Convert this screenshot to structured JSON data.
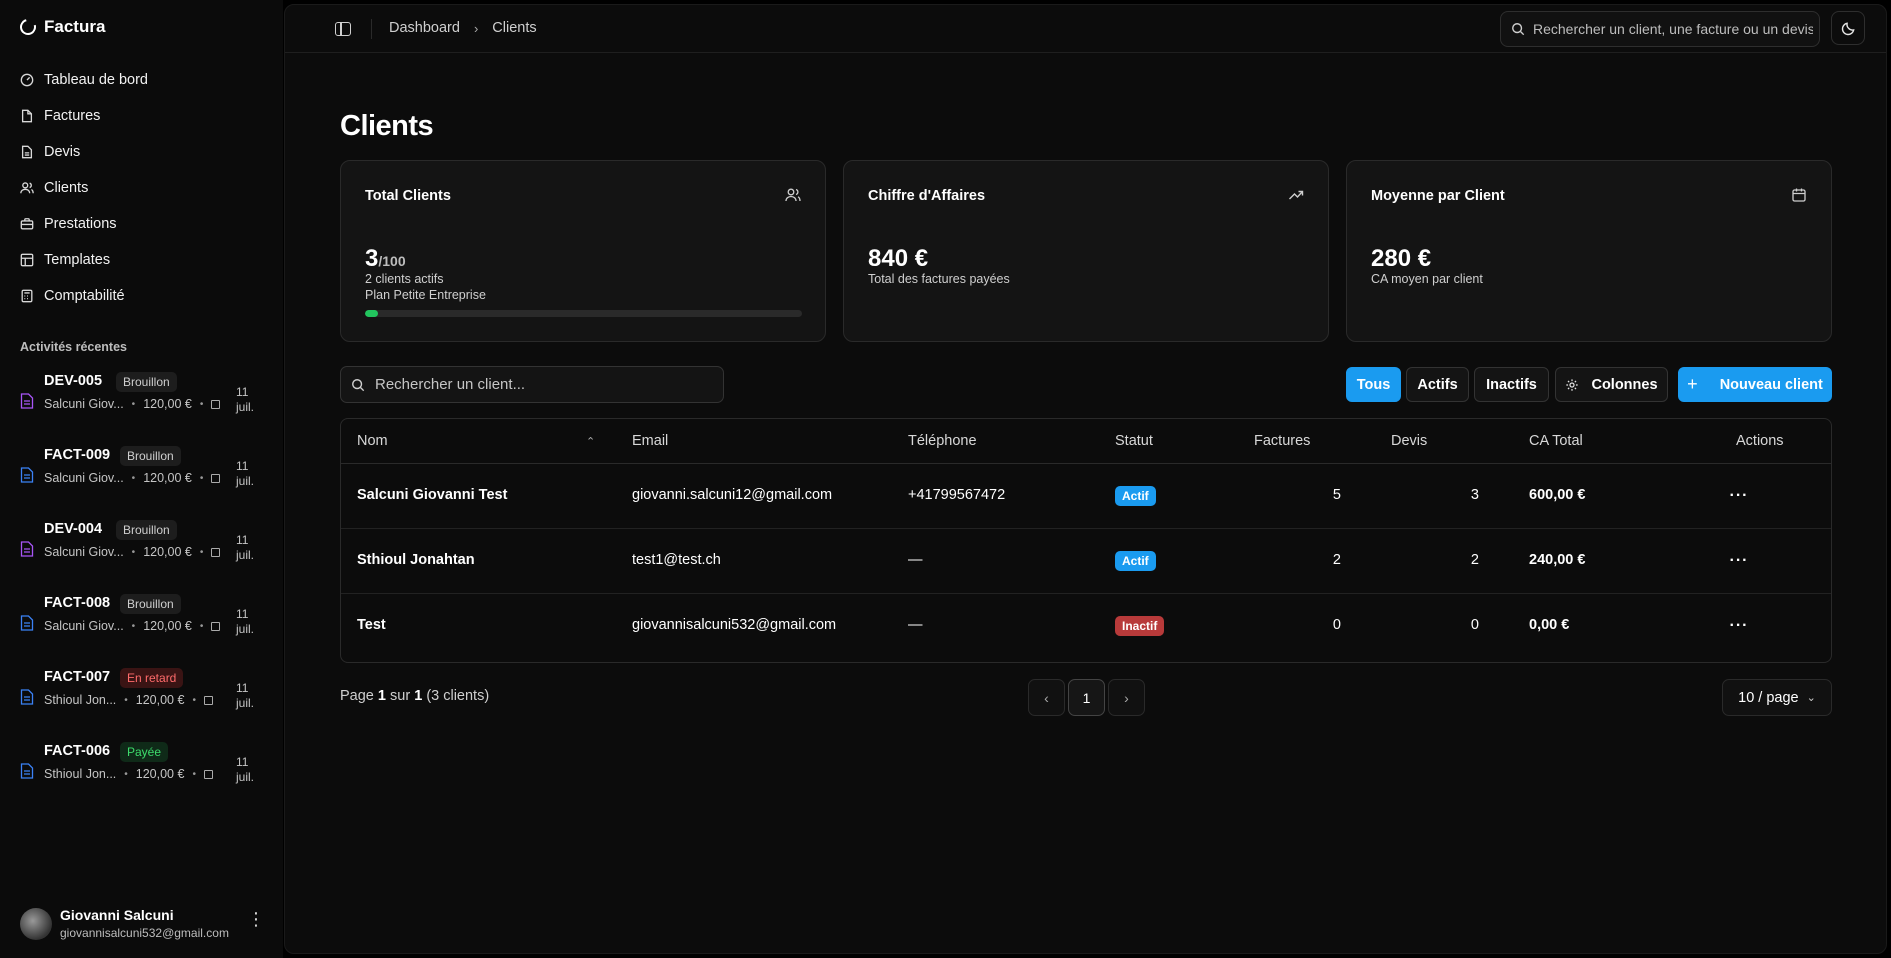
{
  "app": {
    "name": "Factura"
  },
  "sidebar": {
    "nav": [
      {
        "label": "Tableau de bord",
        "icon": "gauge-icon"
      },
      {
        "label": "Factures",
        "icon": "file-icon"
      },
      {
        "label": "Devis",
        "icon": "file-text-icon"
      },
      {
        "label": "Clients",
        "icon": "users-icon"
      },
      {
        "label": "Prestations",
        "icon": "briefcase-icon"
      },
      {
        "label": "Templates",
        "icon": "layout-icon"
      },
      {
        "label": "Comptabilité",
        "icon": "calculator-icon"
      }
    ],
    "activities_label": "Activités récentes",
    "activities": [
      {
        "ref": "DEV-005",
        "badge": "Brouillon",
        "badge_type": "draft",
        "client": "Salcuni Giov...",
        "amount": "120,00 €",
        "date": "11 juil.",
        "icon": "quote-icon",
        "icon_color": "#a855f7"
      },
      {
        "ref": "FACT-009",
        "badge": "Brouillon",
        "badge_type": "draft",
        "client": "Salcuni Giov...",
        "amount": "120,00 €",
        "date": "11 juil.",
        "icon": "invoice-icon",
        "icon_color": "#3b82f6"
      },
      {
        "ref": "DEV-004",
        "badge": "Brouillon",
        "badge_type": "draft",
        "client": "Salcuni Giov...",
        "amount": "120,00 €",
        "date": "11 juil.",
        "icon": "quote-icon",
        "icon_color": "#a855f7"
      },
      {
        "ref": "FACT-008",
        "badge": "Brouillon",
        "badge_type": "draft",
        "client": "Salcuni Giov...",
        "amount": "120,00 €",
        "date": "11 juil.",
        "icon": "invoice-icon",
        "icon_color": "#3b82f6"
      },
      {
        "ref": "FACT-007",
        "badge": "En retard",
        "badge_type": "late",
        "client": "Sthioul Jon...",
        "amount": "120,00 €",
        "date": "11 juil.",
        "icon": "invoice-icon",
        "icon_color": "#3b82f6"
      },
      {
        "ref": "FACT-006",
        "badge": "Payée",
        "badge_type": "paid",
        "client": "Sthioul Jon...",
        "amount": "120,00 €",
        "date": "11 juil.",
        "icon": "invoice-icon",
        "icon_color": "#3b82f6"
      }
    ],
    "user": {
      "name": "Giovanni Salcuni",
      "email": "giovannisalcuni532@gmail.com"
    }
  },
  "header": {
    "breadcrumb": [
      "Dashboard",
      "Clients"
    ],
    "search_placeholder": "Rechercher un client, une facture ou un devis..."
  },
  "page": {
    "title": "Clients"
  },
  "stats": [
    {
      "title": "Total Clients",
      "value": "3",
      "denominator": "/100",
      "line1": "2 clients actifs",
      "line2": "Plan Petite Entreprise",
      "progress": 0.03,
      "icon": "users-icon"
    },
    {
      "title": "Chiffre d'Affaires",
      "value": "840 €",
      "line1": "Total des factures payées",
      "icon": "trending-up-icon"
    },
    {
      "title": "Moyenne par Client",
      "value": "280 €",
      "line1": "CA moyen par client",
      "icon": "calendar-icon"
    }
  ],
  "filters": {
    "search_placeholder": "Rechercher un client...",
    "all": "Tous",
    "active": "Actifs",
    "inactive": "Inactifs",
    "columns": "Colonnes",
    "new_client": "Nouveau client"
  },
  "table": {
    "columns": [
      "Nom",
      "Email",
      "Téléphone",
      "Statut",
      "Factures",
      "Devis",
      "CA Total",
      "Actions"
    ],
    "rows": [
      {
        "name": "Salcuni Giovanni Test",
        "email": "giovanni.salcuni12@gmail.com",
        "phone": "+41799567472",
        "status": "Actif",
        "status_type": "on",
        "invoices": "5",
        "quotes": "3",
        "total": "600,00 €"
      },
      {
        "name": "Sthioul Jonahtan",
        "email": "test1@test.ch",
        "phone": "—",
        "status": "Actif",
        "status_type": "on",
        "invoices": "2",
        "quotes": "2",
        "total": "240,00 €"
      },
      {
        "name": "Test",
        "email": "giovannisalcuni532@gmail.com",
        "phone": "—",
        "status": "Inactif",
        "status_type": "off",
        "invoices": "0",
        "quotes": "0",
        "total": "0,00 €"
      }
    ]
  },
  "pagination": {
    "prefix": "Page",
    "current": "1",
    "of": "sur",
    "total": "1",
    "count_text": "(3 clients)",
    "per_page": "10 / page"
  },
  "colors": {
    "accent": "#1a9bf0",
    "success": "#22c55e",
    "danger": "#b83a3a"
  }
}
